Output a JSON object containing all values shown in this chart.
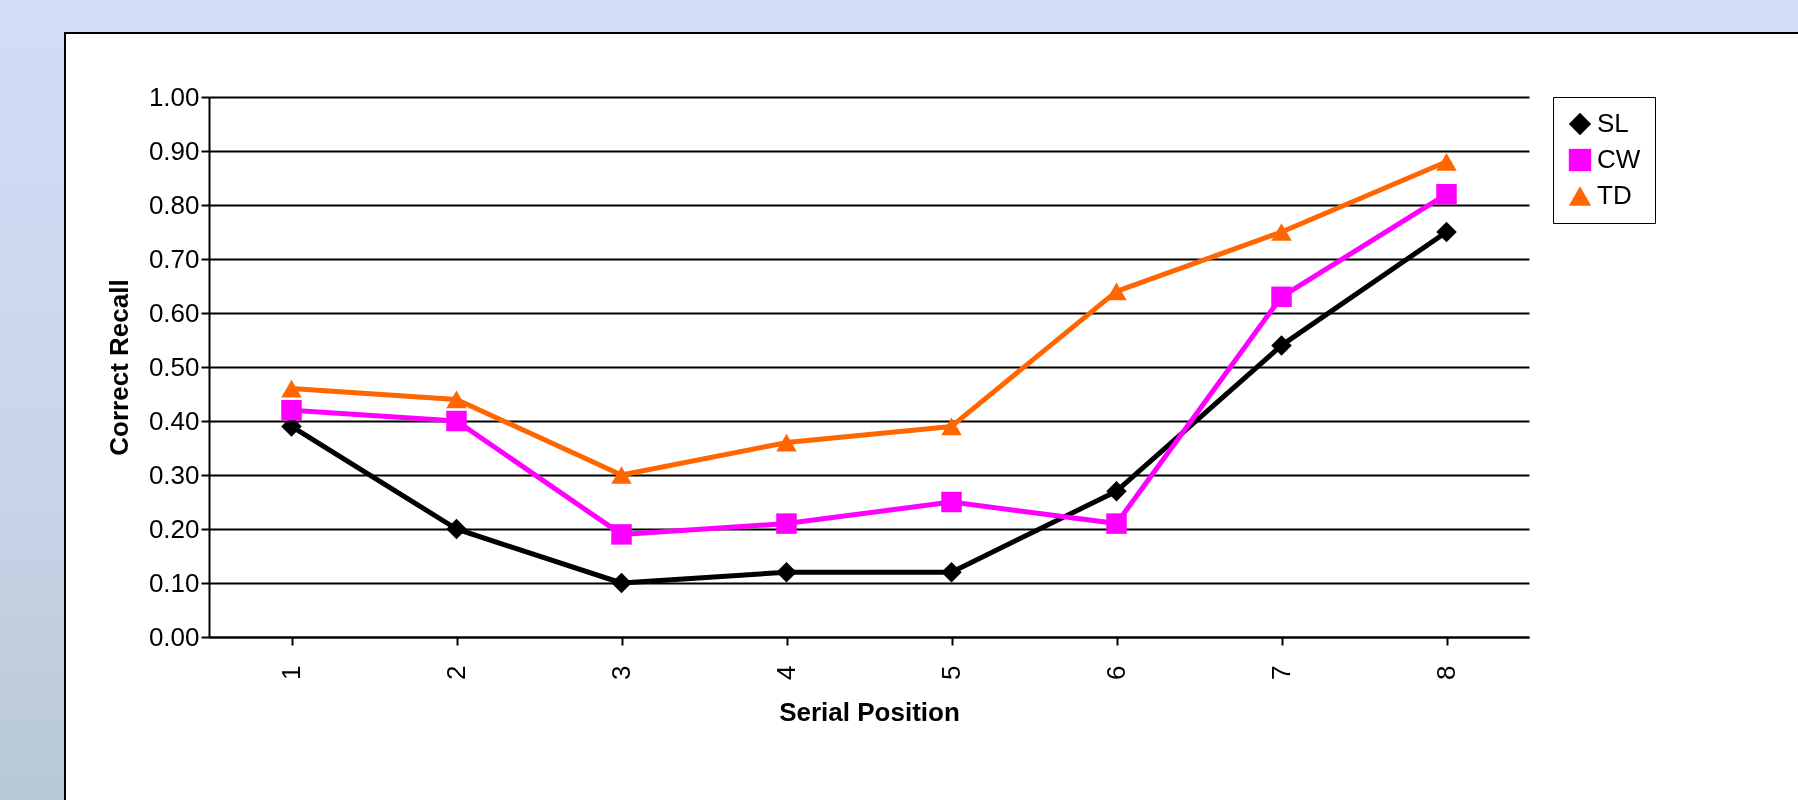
{
  "chart_data": {
    "type": "line",
    "xlabel": "Serial Position",
    "ylabel": "Correct Recall",
    "categories": [
      "1",
      "2",
      "3",
      "4",
      "5",
      "6",
      "7",
      "8"
    ],
    "series": [
      {
        "name": "SL",
        "color": "#000000",
        "marker": "diamond",
        "values": [
          0.39,
          0.2,
          0.1,
          0.12,
          0.12,
          0.27,
          0.54,
          0.75
        ]
      },
      {
        "name": "CW",
        "color": "#ff00ff",
        "marker": "square",
        "values": [
          0.42,
          0.4,
          0.19,
          0.21,
          0.25,
          0.21,
          0.63,
          0.82
        ]
      },
      {
        "name": "TD",
        "color": "#ff6600",
        "marker": "triangle",
        "values": [
          0.46,
          0.44,
          0.3,
          0.36,
          0.39,
          0.64,
          0.75,
          0.88
        ]
      }
    ],
    "ylim": [
      0,
      1
    ],
    "yticks": [
      {
        "value": 0,
        "label": "0.00"
      },
      {
        "value": 0.1,
        "label": "0.10"
      },
      {
        "value": 0.2,
        "label": "0.20"
      },
      {
        "value": 0.3,
        "label": "0.30"
      },
      {
        "value": 0.4,
        "label": "0.40"
      },
      {
        "value": 0.5,
        "label": "0.50"
      },
      {
        "value": 0.6,
        "label": "0.60"
      },
      {
        "value": 0.7,
        "label": "0.70"
      },
      {
        "value": 0.8,
        "label": "0.80"
      },
      {
        "value": 0.9,
        "label": "0.90"
      },
      {
        "value": 1,
        "label": "1.00"
      }
    ],
    "grid": "y",
    "legend": "right",
    "line_style": "solid"
  }
}
